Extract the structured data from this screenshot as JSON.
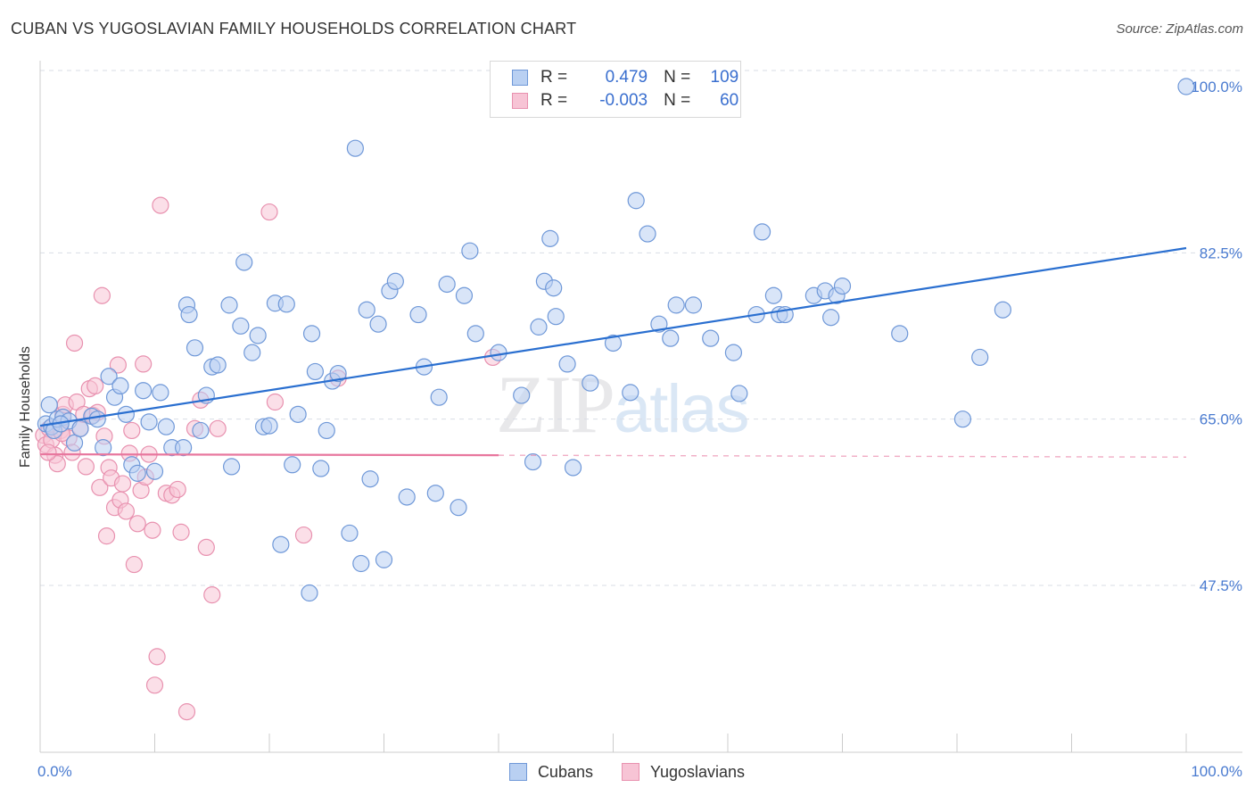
{
  "chart_data": {
    "type": "scatter",
    "title": "CUBAN VS YUGOSLAVIAN FAMILY HOUSEHOLDS CORRELATION CHART",
    "source": "Source: ZipAtlas.com",
    "ylabel": "Family Households",
    "xlabel": "",
    "xlim": [
      0,
      100
    ],
    "ylim": [
      30,
      102
    ],
    "x_tick_labels": [
      {
        "value": 0,
        "label": "0.0%"
      },
      {
        "value": 100,
        "label": "100.0%"
      }
    ],
    "y_ticks": [
      {
        "value": 100,
        "label": "100.0%"
      },
      {
        "value": 82.5,
        "label": "82.5%"
      },
      {
        "value": 65,
        "label": "65.0%"
      },
      {
        "value": 47.5,
        "label": "47.5%"
      }
    ],
    "legend_stats": [
      {
        "r_label": "R =",
        "r_value": "0.479",
        "n_label": "N =",
        "n_value": "109"
      },
      {
        "r_label": "R =",
        "r_value": "-0.003",
        "n_label": "N =",
        "n_value": "60"
      }
    ],
    "watermark": {
      "zip": "ZIP",
      "atlas": "atlas"
    },
    "colors": {
      "cubans_fill": "#b9d0f2",
      "cubans_stroke": "#6f98d8",
      "cubans_line": "#2a6fd0",
      "yugo_fill": "#f7c4d5",
      "yugo_stroke": "#e891af",
      "yugo_line": "#e8779e",
      "grid": "#d9dde6",
      "axis_label": "#4a7bd0"
    },
    "series": [
      {
        "name": "Cubans",
        "trend": {
          "x": [
            0,
            100
          ],
          "y": [
            64.3,
            83.0
          ]
        },
        "points": [
          [
            0.5,
            64.5
          ],
          [
            0.8,
            66.5
          ],
          [
            1.0,
            64.2
          ],
          [
            1.2,
            63.8
          ],
          [
            1.5,
            65.0
          ],
          [
            2.0,
            65.2
          ],
          [
            2.5,
            64.8
          ],
          [
            3.0,
            62.5
          ],
          [
            3.5,
            64.0
          ],
          [
            4.5,
            65.3
          ],
          [
            5.0,
            65.0
          ],
          [
            5.5,
            62.0
          ],
          [
            6.0,
            69.5
          ],
          [
            6.5,
            67.3
          ],
          [
            7.0,
            68.5
          ],
          [
            7.5,
            65.5
          ],
          [
            8.0,
            60.2
          ],
          [
            8.5,
            59.3
          ],
          [
            9.0,
            68.0
          ],
          [
            9.5,
            64.7
          ],
          [
            10.0,
            59.5
          ],
          [
            10.5,
            67.8
          ],
          [
            11.0,
            64.2
          ],
          [
            11.5,
            62.0
          ],
          [
            12.5,
            62.0
          ],
          [
            12.8,
            77.0
          ],
          [
            13.0,
            76.0
          ],
          [
            13.5,
            72.5
          ],
          [
            14.0,
            63.8
          ],
          [
            14.5,
            67.5
          ],
          [
            15.0,
            70.5
          ],
          [
            15.5,
            70.7
          ],
          [
            16.5,
            77.0
          ],
          [
            16.7,
            60.0
          ],
          [
            17.5,
            74.8
          ],
          [
            17.8,
            81.5
          ],
          [
            18.5,
            72.0
          ],
          [
            19.0,
            73.8
          ],
          [
            19.5,
            64.2
          ],
          [
            20.0,
            64.3
          ],
          [
            20.5,
            77.2
          ],
          [
            21.0,
            51.8
          ],
          [
            21.5,
            77.1
          ],
          [
            22.0,
            60.2
          ],
          [
            22.5,
            65.5
          ],
          [
            23.5,
            46.7
          ],
          [
            23.7,
            74.0
          ],
          [
            24.0,
            70.0
          ],
          [
            24.5,
            59.8
          ],
          [
            25.0,
            63.8
          ],
          [
            25.5,
            69.0
          ],
          [
            26.0,
            69.8
          ],
          [
            27.0,
            53.0
          ],
          [
            27.5,
            93.5
          ],
          [
            28.0,
            49.8
          ],
          [
            28.5,
            76.5
          ],
          [
            28.8,
            58.7
          ],
          [
            29.5,
            75.0
          ],
          [
            30.0,
            50.2
          ],
          [
            30.5,
            78.5
          ],
          [
            31.0,
            79.5
          ],
          [
            32.0,
            56.8
          ],
          [
            33.0,
            76.0
          ],
          [
            33.5,
            70.5
          ],
          [
            34.5,
            57.2
          ],
          [
            34.8,
            67.3
          ],
          [
            35.5,
            79.2
          ],
          [
            36.5,
            55.7
          ],
          [
            37.0,
            78.0
          ],
          [
            37.5,
            82.7
          ],
          [
            38.0,
            74.0
          ],
          [
            40.0,
            72.0
          ],
          [
            42.0,
            67.5
          ],
          [
            43.0,
            60.5
          ],
          [
            43.5,
            74.7
          ],
          [
            44.0,
            79.5
          ],
          [
            44.5,
            84.0
          ],
          [
            44.8,
            78.8
          ],
          [
            45.0,
            75.8
          ],
          [
            46.0,
            70.8
          ],
          [
            46.5,
            59.9
          ],
          [
            48.0,
            68.8
          ],
          [
            50.0,
            73.0
          ],
          [
            51.5,
            67.8
          ],
          [
            52.0,
            88.0
          ],
          [
            53.0,
            84.5
          ],
          [
            54.0,
            75.0
          ],
          [
            55.0,
            73.5
          ],
          [
            55.5,
            77.0
          ],
          [
            57.0,
            77.0
          ],
          [
            58.5,
            73.5
          ],
          [
            60.5,
            72.0
          ],
          [
            61.0,
            67.7
          ],
          [
            62.5,
            76.0
          ],
          [
            63.0,
            84.7
          ],
          [
            64.0,
            78.0
          ],
          [
            64.5,
            76.0
          ],
          [
            65.0,
            76.0
          ],
          [
            67.5,
            78.0
          ],
          [
            68.5,
            78.5
          ],
          [
            69.0,
            75.7
          ],
          [
            69.5,
            78.0
          ],
          [
            70.0,
            79.0
          ],
          [
            75.0,
            74.0
          ],
          [
            80.5,
            65.0
          ],
          [
            82.0,
            71.5
          ],
          [
            84.0,
            76.5
          ],
          [
            100.0,
            100.0
          ],
          [
            1.8,
            64.5
          ]
        ]
      },
      {
        "name": "Yugoslavians",
        "trend": {
          "x": [
            0,
            40
          ],
          "y": [
            61.3,
            61.2
          ]
        },
        "dashed": {
          "x": [
            40,
            100
          ],
          "y": [
            61.2,
            61.0
          ]
        },
        "points": [
          [
            0.3,
            63.3
          ],
          [
            0.5,
            62.3
          ],
          [
            0.8,
            64.0
          ],
          [
            1.0,
            62.8
          ],
          [
            1.3,
            61.2
          ],
          [
            1.5,
            60.3
          ],
          [
            1.8,
            63.8
          ],
          [
            2.0,
            65.5
          ],
          [
            2.2,
            66.5
          ],
          [
            2.5,
            63.0
          ],
          [
            2.8,
            61.5
          ],
          [
            3.0,
            73.0
          ],
          [
            3.2,
            66.8
          ],
          [
            3.5,
            64.0
          ],
          [
            3.8,
            65.5
          ],
          [
            4.0,
            60.0
          ],
          [
            4.3,
            68.2
          ],
          [
            4.6,
            65.4
          ],
          [
            4.8,
            68.5
          ],
          [
            5.0,
            65.7
          ],
          [
            5.2,
            57.8
          ],
          [
            5.4,
            78.0
          ],
          [
            5.6,
            63.2
          ],
          [
            5.8,
            52.7
          ],
          [
            6.0,
            59.9
          ],
          [
            6.2,
            58.8
          ],
          [
            6.5,
            55.7
          ],
          [
            6.8,
            70.7
          ],
          [
            7.0,
            56.5
          ],
          [
            7.2,
            58.2
          ],
          [
            7.5,
            55.3
          ],
          [
            7.8,
            61.4
          ],
          [
            8.0,
            63.8
          ],
          [
            8.2,
            49.7
          ],
          [
            8.5,
            54.0
          ],
          [
            8.8,
            57.5
          ],
          [
            9.0,
            70.8
          ],
          [
            9.2,
            58.9
          ],
          [
            9.5,
            61.3
          ],
          [
            9.8,
            53.3
          ],
          [
            10.0,
            37.0
          ],
          [
            10.2,
            40.0
          ],
          [
            10.5,
            87.5
          ],
          [
            11.0,
            57.2
          ],
          [
            11.5,
            57.0
          ],
          [
            12.0,
            57.6
          ],
          [
            12.3,
            53.1
          ],
          [
            12.8,
            34.2
          ],
          [
            13.5,
            64.0
          ],
          [
            14.0,
            67.0
          ],
          [
            14.5,
            51.5
          ],
          [
            15.0,
            46.5
          ],
          [
            15.5,
            64.0
          ],
          [
            20.0,
            86.8
          ],
          [
            20.5,
            66.8
          ],
          [
            23.0,
            52.8
          ],
          [
            26.0,
            69.3
          ],
          [
            39.5,
            71.5
          ],
          [
            0.7,
            61.5
          ],
          [
            1.9,
            63.5
          ]
        ]
      }
    ]
  }
}
